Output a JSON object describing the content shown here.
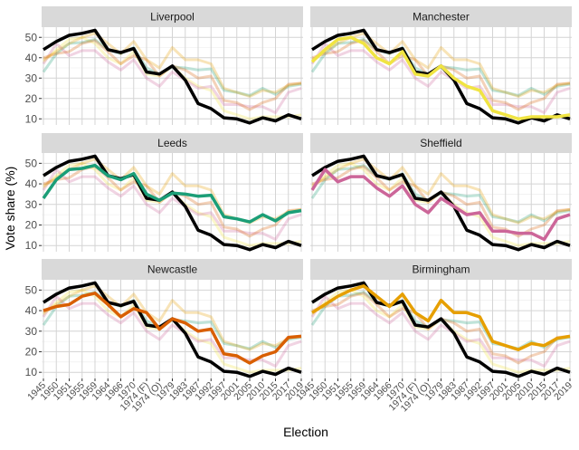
{
  "chart_data": {
    "type": "line",
    "title": "",
    "xlabel": "Election",
    "ylabel": "Vote share (%)",
    "ylim": [
      7,
      55
    ],
    "yticks": [
      10,
      20,
      30,
      40,
      50
    ],
    "grid": true,
    "layout": "facet 3 rows x 2 columns; each panel highlights one city, others shown faded",
    "categories": [
      "1945",
      "1950",
      "1951",
      "1955",
      "1959",
      "1964",
      "1966",
      "1970",
      "1974 (F)",
      "1974 (O)",
      "1979",
      "1983",
      "1987",
      "1992",
      "1997",
      "2001",
      "2005",
      "2010",
      "2015",
      "2017",
      "2019"
    ],
    "series": [
      {
        "name": "Liverpool",
        "color": "#000000",
        "values": [
          44,
          48,
          51,
          52,
          53.5,
          44,
          42.5,
          44.5,
          33,
          32,
          36,
          29,
          17.5,
          15,
          10.5,
          10,
          8,
          10.5,
          9,
          12,
          10
        ]
      },
      {
        "name": "Manchester",
        "color": "#F0E442",
        "values": [
          38,
          44,
          49,
          50,
          47,
          40,
          37,
          43,
          32,
          31,
          36,
          30,
          26,
          24,
          14,
          12,
          10,
          11,
          11,
          11,
          12
        ]
      },
      {
        "name": "Leeds",
        "color": "#1B9E77",
        "values": [
          33,
          42,
          47,
          47.5,
          49,
          44,
          42,
          45,
          35,
          32,
          35.5,
          35,
          34,
          34.5,
          24,
          23,
          21.5,
          25,
          22,
          26,
          27
        ]
      },
      {
        "name": "Sheffield",
        "color": "#CC6699",
        "values": [
          37,
          47,
          41,
          43.5,
          43.5,
          38,
          34,
          39,
          30,
          26,
          33,
          29,
          25,
          26,
          17,
          17,
          16,
          16,
          13,
          23,
          25
        ]
      },
      {
        "name": "Newcastle",
        "color": "#D95F02",
        "values": [
          40,
          42,
          43,
          47,
          48.5,
          43,
          37,
          41,
          39,
          31,
          36,
          34,
          30,
          31,
          19,
          18,
          14.5,
          18,
          20,
          27,
          27.5
        ]
      },
      {
        "name": "Birmingham",
        "color": "#E69F00",
        "values": [
          39,
          43,
          47,
          50,
          52,
          47,
          42,
          48,
          39,
          35,
          45,
          39,
          39,
          37,
          25,
          23,
          21,
          24,
          23,
          26.5,
          27.5
        ]
      }
    ],
    "panels": [
      "Liverpool",
      "Manchester",
      "Leeds",
      "Sheffield",
      "Newcastle",
      "Birmingham"
    ],
    "legend": "none"
  }
}
